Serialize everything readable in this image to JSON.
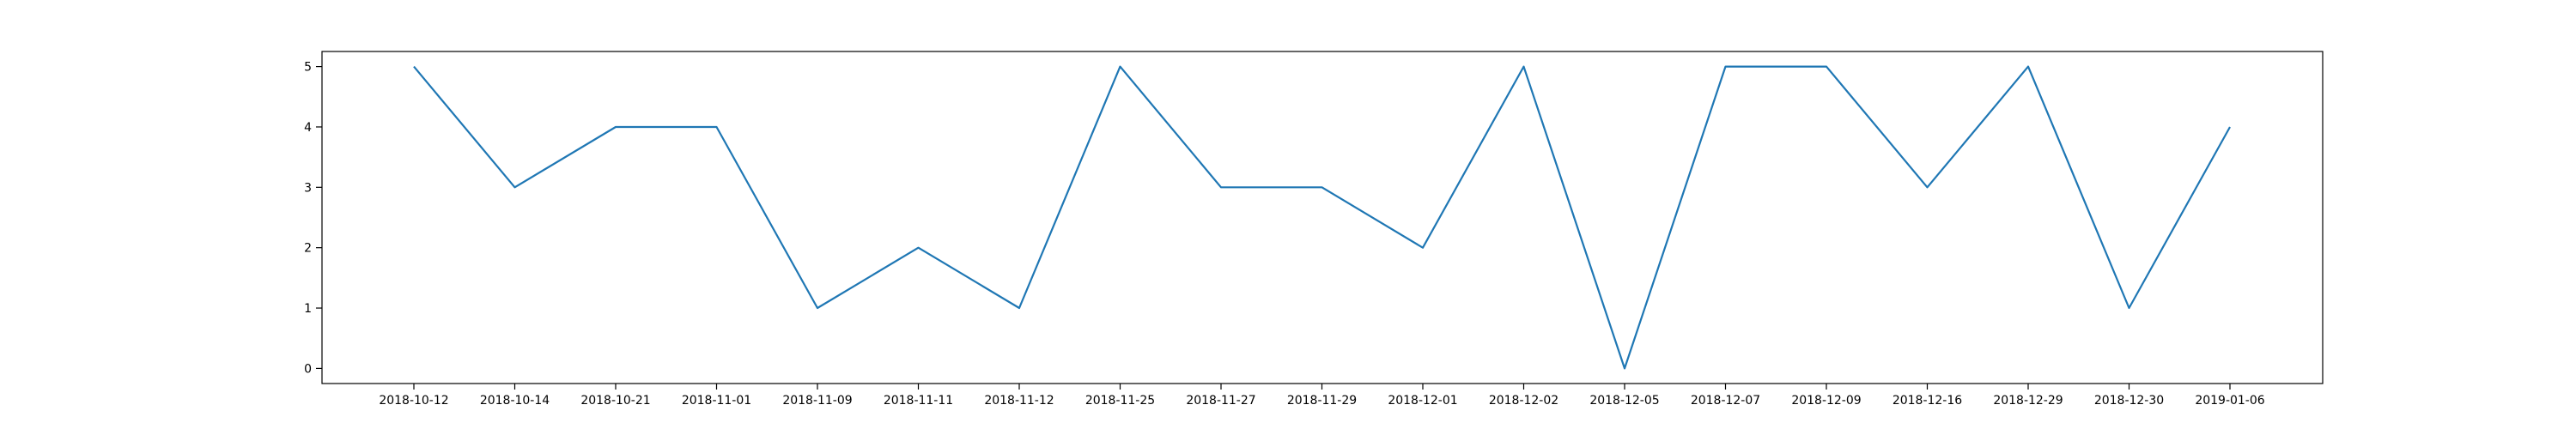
{
  "chart_data": {
    "type": "line",
    "title": "",
    "xlabel": "",
    "ylabel": "",
    "categories": [
      "2018-10-12",
      "2018-10-14",
      "2018-10-21",
      "2018-11-01",
      "2018-11-09",
      "2018-11-11",
      "2018-11-12",
      "2018-11-25",
      "2018-11-27",
      "2018-11-29",
      "2018-12-01",
      "2018-12-02",
      "2018-12-05",
      "2018-12-07",
      "2018-12-09",
      "2018-12-16",
      "2018-12-29",
      "2018-12-30",
      "2019-01-06"
    ],
    "series": [
      {
        "values": [
          5,
          3,
          4,
          4,
          1,
          2,
          1,
          5,
          3,
          3,
          2,
          5,
          0,
          5,
          5,
          3,
          5,
          1,
          4
        ],
        "color": "#1f77b4"
      }
    ],
    "yticks": [
      0,
      1,
      2,
      3,
      4,
      5
    ],
    "ylim": [
      -0.25,
      5.25
    ],
    "grid": false,
    "legend": "none"
  }
}
